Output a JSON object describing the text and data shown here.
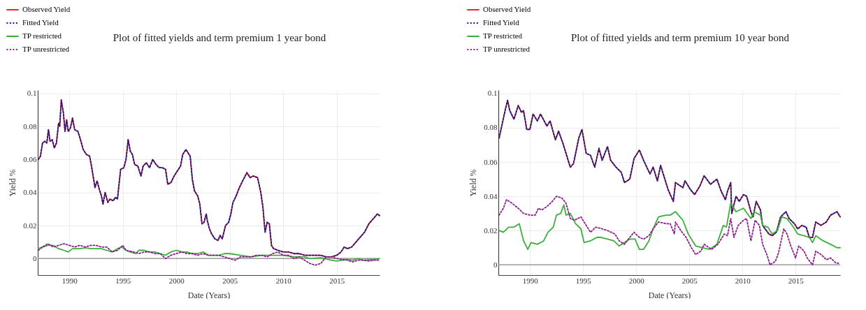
{
  "chart_data": [
    {
      "type": "line",
      "title": "Plot of fitted yields and term premium 1 year bond",
      "xlabel": "Date (Years)",
      "ylabel": "Yield %",
      "xlim": [
        1987.05,
        2019.0
      ],
      "ylim": [
        -0.01,
        0.102
      ],
      "xticks": [
        1990,
        1995,
        2000,
        2005,
        2010,
        2015
      ],
      "yticks": [
        0,
        0.02,
        0.04,
        0.06,
        0.08,
        0.1
      ],
      "grid": true,
      "legend": "top left",
      "ref_lines": [
        {
          "axis": "y",
          "value": 0,
          "color": "#999999"
        }
      ],
      "series": [
        {
          "name": "Observed Yield",
          "color": "#e8262d",
          "line_style": "solid",
          "x": [
            1987.1,
            1987.3,
            1987.5,
            1987.7,
            1987.9,
            1988.05,
            1988.2,
            1988.4,
            1988.6,
            1988.8,
            1989.0,
            1989.1,
            1989.25,
            1989.45,
            1989.6,
            1989.75,
            1989.9,
            1990.1,
            1990.3,
            1990.5,
            1990.8,
            1991.0,
            1991.3,
            1991.6,
            1991.9,
            1992.1,
            1992.4,
            1992.6,
            1992.8,
            1993.0,
            1993.15,
            1993.35,
            1993.6,
            1993.8,
            1994.1,
            1994.3,
            1994.5,
            1994.8,
            1995.1,
            1995.3,
            1995.5,
            1995.7,
            1995.9,
            1996.1,
            1996.4,
            1996.7,
            1996.9,
            1997.2,
            1997.5,
            1997.8,
            1998.1,
            1998.4,
            1998.7,
            1999.0,
            1999.2,
            1999.5,
            1999.8,
            2000.1,
            2000.4,
            2000.6,
            2000.9,
            2001.1,
            2001.3,
            2001.5,
            2001.7,
            2002.0,
            2002.2,
            2002.4,
            2002.6,
            2002.8,
            2002.9,
            2003.1,
            2003.3,
            2003.6,
            2003.9,
            2004.1,
            2004.3,
            2004.6,
            2004.9,
            2005.1,
            2005.3,
            2005.6,
            2005.9,
            2006.2,
            2006.6,
            2006.9,
            2007.2,
            2007.6,
            2007.9,
            2008.1,
            2008.3,
            2008.5,
            2008.7,
            2008.9,
            2009.1,
            2009.5,
            2010.0,
            2010.5,
            2011.0,
            2011.5,
            2012.0,
            2012.5,
            2013.0,
            2013.5,
            2014.0,
            2014.5,
            2015.0,
            2015.4,
            2015.7,
            2016.0,
            2016.4,
            2016.8,
            2017.2,
            2017.6,
            2018.0,
            2018.4,
            2018.8,
            2019.0
          ],
          "values": [
            0.06,
            0.062,
            0.07,
            0.071,
            0.07,
            0.078,
            0.071,
            0.072,
            0.067,
            0.07,
            0.082,
            0.08,
            0.096,
            0.088,
            0.077,
            0.084,
            0.077,
            0.079,
            0.085,
            0.078,
            0.077,
            0.073,
            0.066,
            0.063,
            0.062,
            0.055,
            0.043,
            0.047,
            0.042,
            0.038,
            0.033,
            0.04,
            0.034,
            0.036,
            0.035,
            0.037,
            0.036,
            0.054,
            0.055,
            0.06,
            0.072,
            0.065,
            0.063,
            0.057,
            0.056,
            0.05,
            0.056,
            0.058,
            0.055,
            0.06,
            0.057,
            0.055,
            0.055,
            0.054,
            0.045,
            0.046,
            0.05,
            0.053,
            0.056,
            0.063,
            0.066,
            0.064,
            0.062,
            0.048,
            0.041,
            0.038,
            0.033,
            0.021,
            0.022,
            0.027,
            0.023,
            0.018,
            0.015,
            0.012,
            0.011,
            0.014,
            0.012,
            0.02,
            0.022,
            0.027,
            0.034,
            0.038,
            0.043,
            0.047,
            0.052,
            0.049,
            0.05,
            0.049,
            0.04,
            0.031,
            0.016,
            0.022,
            0.021,
            0.008,
            0.006,
            0.005,
            0.004,
            0.004,
            0.003,
            0.003,
            0.002,
            0.002,
            0.002,
            0.002,
            0.001,
            0.001,
            0.002,
            0.004,
            0.007,
            0.006,
            0.007,
            0.01,
            0.013,
            0.016,
            0.021,
            0.024,
            0.027,
            0.026
          ]
        },
        {
          "name": "Fitted Yield",
          "color": "#1a1a80",
          "line_style": "dotted",
          "x": [
            1987.1,
            1987.3,
            1987.5,
            1987.7,
            1987.9,
            1988.05,
            1988.2,
            1988.4,
            1988.6,
            1988.8,
            1989.0,
            1989.1,
            1989.25,
            1989.45,
            1989.6,
            1989.75,
            1989.9,
            1990.1,
            1990.3,
            1990.5,
            1990.8,
            1991.0,
            1991.3,
            1991.6,
            1991.9,
            1992.1,
            1992.4,
            1992.6,
            1992.8,
            1993.0,
            1993.15,
            1993.35,
            1993.6,
            1993.8,
            1994.1,
            1994.3,
            1994.5,
            1994.8,
            1995.1,
            1995.3,
            1995.5,
            1995.7,
            1995.9,
            1996.1,
            1996.4,
            1996.7,
            1996.9,
            1997.2,
            1997.5,
            1997.8,
            1998.1,
            1998.4,
            1998.7,
            1999.0,
            1999.2,
            1999.5,
            1999.8,
            2000.1,
            2000.4,
            2000.6,
            2000.9,
            2001.1,
            2001.3,
            2001.5,
            2001.7,
            2002.0,
            2002.2,
            2002.4,
            2002.6,
            2002.8,
            2002.9,
            2003.1,
            2003.3,
            2003.6,
            2003.9,
            2004.1,
            2004.3,
            2004.6,
            2004.9,
            2005.1,
            2005.3,
            2005.6,
            2005.9,
            2006.2,
            2006.6,
            2006.9,
            2007.2,
            2007.6,
            2007.9,
            2008.1,
            2008.3,
            2008.5,
            2008.7,
            2008.9,
            2009.1,
            2009.5,
            2010.0,
            2010.5,
            2011.0,
            2011.5,
            2012.0,
            2012.5,
            2013.0,
            2013.5,
            2014.0,
            2014.5,
            2015.0,
            2015.4,
            2015.7,
            2016.0,
            2016.4,
            2016.8,
            2017.2,
            2017.6,
            2018.0,
            2018.4,
            2018.8,
            2019.0
          ],
          "values": [
            0.06,
            0.062,
            0.07,
            0.071,
            0.07,
            0.078,
            0.071,
            0.072,
            0.067,
            0.07,
            0.082,
            0.08,
            0.096,
            0.088,
            0.077,
            0.084,
            0.077,
            0.079,
            0.085,
            0.078,
            0.077,
            0.073,
            0.066,
            0.063,
            0.062,
            0.055,
            0.043,
            0.047,
            0.042,
            0.038,
            0.033,
            0.04,
            0.034,
            0.036,
            0.035,
            0.037,
            0.036,
            0.054,
            0.055,
            0.06,
            0.072,
            0.065,
            0.063,
            0.057,
            0.056,
            0.05,
            0.056,
            0.058,
            0.055,
            0.06,
            0.057,
            0.055,
            0.055,
            0.054,
            0.045,
            0.046,
            0.05,
            0.053,
            0.056,
            0.063,
            0.066,
            0.064,
            0.062,
            0.048,
            0.041,
            0.038,
            0.033,
            0.021,
            0.022,
            0.027,
            0.023,
            0.018,
            0.015,
            0.012,
            0.011,
            0.014,
            0.012,
            0.02,
            0.022,
            0.027,
            0.034,
            0.038,
            0.043,
            0.047,
            0.052,
            0.049,
            0.05,
            0.049,
            0.04,
            0.031,
            0.016,
            0.022,
            0.021,
            0.008,
            0.006,
            0.005,
            0.004,
            0.004,
            0.003,
            0.003,
            0.002,
            0.002,
            0.002,
            0.002,
            0.001,
            0.001,
            0.002,
            0.004,
            0.007,
            0.006,
            0.007,
            0.01,
            0.013,
            0.016,
            0.021,
            0.024,
            0.027,
            0.026
          ]
        },
        {
          "name": "TP restricted",
          "color": "#3cae3c",
          "line_style": "solid",
          "x": [
            1987.1,
            1987.5,
            1988.0,
            1988.5,
            1989.0,
            1989.5,
            1989.9,
            1990.3,
            1991.0,
            1991.5,
            1992.0,
            1992.5,
            1993.0,
            1993.5,
            1994.0,
            1994.5,
            1994.9,
            1995.3,
            1995.7,
            1996.2,
            1996.5,
            1997.0,
            1997.5,
            1998.0,
            1998.5,
            1999.0,
            1999.5,
            2000.0,
            2000.5,
            2001.0,
            2001.5,
            2002.0,
            2002.5,
            2003.0,
            2004.0,
            2004.5,
            2005.0,
            2006.0,
            2007.0,
            2008.0,
            2009.0,
            2010.0,
            2011.0,
            2012.0,
            2012.5,
            2013.5,
            2014.5,
            2015.0,
            2016.0,
            2016.5,
            2017.0,
            2017.5,
            2018.5,
            2019.0
          ],
          "values": [
            0.006,
            0.007,
            0.008,
            0.008,
            0.006,
            0.005,
            0.004,
            0.006,
            0.006,
            0.0065,
            0.006,
            0.006,
            0.006,
            0.005,
            0.004,
            0.006,
            0.007,
            0.005,
            0.004,
            0.003,
            0.005,
            0.005,
            0.004,
            0.004,
            0.003,
            0.002,
            0.004,
            0.005,
            0.004,
            0.004,
            0.003,
            0.003,
            0.004,
            0.002,
            0.002,
            0.003,
            0.003,
            0.002,
            0.001,
            0.002,
            0.002,
            0.002,
            0.001,
            0.001,
            0.0,
            0.0005,
            -0.001,
            -0.0015,
            -0.0005,
            -0.001,
            0.0,
            -0.001,
            -0.0005,
            0.0
          ]
        },
        {
          "name": "TP unrestricted",
          "color": "#8b1a8b",
          "line_style": "dotted",
          "x": [
            1987.1,
            1987.5,
            1988.0,
            1988.5,
            1989.0,
            1989.5,
            1990.0,
            1990.5,
            1991.0,
            1991.5,
            1992.0,
            1992.5,
            1993.0,
            1993.5,
            1994.0,
            1994.5,
            1995.0,
            1995.3,
            1996.0,
            1996.5,
            1997.0,
            1997.5,
            1998.0,
            1998.5,
            1999.0,
            1999.5,
            2000.0,
            2000.5,
            2001.0,
            2001.5,
            2002.0,
            2002.5,
            2003.0,
            2003.5,
            2004.0,
            2004.5,
            2005.0,
            2005.5,
            2006.0,
            2006.5,
            2007.0,
            2007.5,
            2008.0,
            2008.5,
            2009.0,
            2009.5,
            2010.0,
            2010.5,
            2011.0,
            2011.5,
            2012.0,
            2012.5,
            2013.0,
            2013.5,
            2014.0,
            2014.5,
            2015.0,
            2015.5,
            2016.0,
            2016.5,
            2017.0,
            2017.5,
            2018.0,
            2018.5,
            2019.0
          ],
          "values": [
            0.005,
            0.007,
            0.009,
            0.007,
            0.008,
            0.009,
            0.008,
            0.007,
            0.008,
            0.007,
            0.008,
            0.008,
            0.007,
            0.007,
            0.004,
            0.005,
            0.008,
            0.005,
            0.004,
            0.003,
            0.004,
            0.004,
            0.003,
            0.003,
            0.0,
            0.002,
            0.003,
            0.004,
            0.003,
            0.003,
            0.002,
            0.003,
            0.002,
            0.002,
            0.002,
            0.001,
            0.0,
            -0.001,
            0.001,
            0.001,
            0.001,
            0.002,
            0.002,
            0.001,
            0.003,
            0.004,
            0.002,
            0.002,
            0.0,
            0.001,
            -0.001,
            -0.003,
            -0.004,
            -0.003,
            0.001,
            0.001,
            0.0,
            -0.0005,
            -0.001,
            -0.002,
            -0.001,
            -0.001,
            -0.0015,
            -0.001,
            -0.001
          ]
        }
      ]
    },
    {
      "type": "line",
      "title": "Plot of fitted yields and term premium 10 year bond",
      "xlabel": "Date (Years)",
      "ylabel": "Yield %",
      "xlim": [
        1987.03,
        2019.2
      ],
      "ylim": [
        -0.006,
        0.102
      ],
      "xticks": [
        1990,
        1995,
        2000,
        2005,
        2010,
        2015
      ],
      "yticks": [
        0,
        0.02,
        0.04,
        0.06,
        0.08,
        0.1
      ],
      "grid": true,
      "legend": "top left",
      "ref_lines": [
        {
          "axis": "y",
          "value": 0,
          "color": "#999999"
        }
      ],
      "series": [
        {
          "name": "Observed Yield",
          "color": "#e8262d",
          "line_style": "solid",
          "x": [
            1987.1,
            1987.7,
            1987.9,
            1988.1,
            1988.5,
            1988.9,
            1989.2,
            1989.4,
            1989.7,
            1990.0,
            1990.3,
            1990.7,
            1991.0,
            1991.6,
            1991.9,
            1992.4,
            1992.7,
            1993.1,
            1993.4,
            1993.8,
            1994.1,
            1994.6,
            1994.9,
            1995.3,
            1995.7,
            1996.1,
            1996.5,
            1996.8,
            1997.3,
            1997.6,
            1998.1,
            1998.6,
            1998.9,
            1999.4,
            1999.8,
            2000.3,
            2000.7,
            2001.3,
            2001.6,
            2002.0,
            2002.3,
            2002.7,
            2003.0,
            2003.5,
            2003.7,
            2004.4,
            2004.6,
            2005.1,
            2005.5,
            2006.0,
            2006.4,
            2007.0,
            2007.6,
            2008.0,
            2008.4,
            2008.6,
            2008.9,
            2009.0,
            2009.4,
            2009.7,
            2010.1,
            2010.4,
            2010.8,
            2011.0,
            2011.3,
            2011.7,
            2011.9,
            2012.5,
            2012.8,
            2013.2,
            2013.6,
            2014.1,
            2014.4,
            2014.9,
            2015.2,
            2015.6,
            2016.0,
            2016.3,
            2016.6,
            2016.9,
            2017.4,
            2017.9,
            2018.3,
            2018.9,
            2019.2
          ],
          "values": [
            0.074,
            0.091,
            0.096,
            0.09,
            0.085,
            0.093,
            0.089,
            0.09,
            0.079,
            0.079,
            0.088,
            0.084,
            0.088,
            0.081,
            0.084,
            0.073,
            0.078,
            0.071,
            0.065,
            0.057,
            0.059,
            0.074,
            0.079,
            0.065,
            0.064,
            0.057,
            0.068,
            0.061,
            0.069,
            0.061,
            0.057,
            0.054,
            0.048,
            0.05,
            0.062,
            0.067,
            0.061,
            0.053,
            0.057,
            0.049,
            0.058,
            0.05,
            0.044,
            0.037,
            0.048,
            0.045,
            0.049,
            0.044,
            0.041,
            0.046,
            0.052,
            0.047,
            0.05,
            0.043,
            0.038,
            0.043,
            0.048,
            0.03,
            0.04,
            0.037,
            0.041,
            0.04,
            0.031,
            0.028,
            0.037,
            0.032,
            0.023,
            0.018,
            0.017,
            0.019,
            0.028,
            0.031,
            0.027,
            0.024,
            0.021,
            0.023,
            0.022,
            0.016,
            0.016,
            0.025,
            0.023,
            0.025,
            0.029,
            0.031,
            0.028
          ]
        },
        {
          "name": "Fitted Yield",
          "color": "#1a1a80",
          "line_style": "dotted",
          "x": [
            1987.1,
            1987.7,
            1987.9,
            1988.1,
            1988.5,
            1988.9,
            1989.2,
            1989.4,
            1989.7,
            1990.0,
            1990.3,
            1990.7,
            1991.0,
            1991.6,
            1991.9,
            1992.4,
            1992.7,
            1993.1,
            1993.4,
            1993.8,
            1994.1,
            1994.6,
            1994.9,
            1995.3,
            1995.7,
            1996.1,
            1996.5,
            1996.8,
            1997.3,
            1997.6,
            1998.1,
            1998.6,
            1998.9,
            1999.4,
            1999.8,
            2000.3,
            2000.7,
            2001.3,
            2001.6,
            2002.0,
            2002.3,
            2002.7,
            2003.0,
            2003.5,
            2003.7,
            2004.4,
            2004.6,
            2005.1,
            2005.5,
            2006.0,
            2006.4,
            2007.0,
            2007.6,
            2008.0,
            2008.4,
            2008.6,
            2008.9,
            2009.0,
            2009.4,
            2009.7,
            2010.1,
            2010.4,
            2010.8,
            2011.0,
            2011.3,
            2011.7,
            2011.9,
            2012.5,
            2012.8,
            2013.2,
            2013.6,
            2014.1,
            2014.4,
            2014.9,
            2015.2,
            2015.6,
            2016.0,
            2016.3,
            2016.6,
            2016.9,
            2017.4,
            2017.9,
            2018.3,
            2018.9,
            2019.2
          ],
          "values": [
            0.074,
            0.091,
            0.096,
            0.09,
            0.085,
            0.093,
            0.089,
            0.09,
            0.079,
            0.079,
            0.088,
            0.084,
            0.088,
            0.081,
            0.084,
            0.073,
            0.078,
            0.071,
            0.065,
            0.057,
            0.059,
            0.074,
            0.079,
            0.065,
            0.064,
            0.057,
            0.068,
            0.061,
            0.069,
            0.061,
            0.057,
            0.054,
            0.048,
            0.05,
            0.062,
            0.067,
            0.061,
            0.053,
            0.057,
            0.049,
            0.058,
            0.05,
            0.044,
            0.037,
            0.048,
            0.045,
            0.049,
            0.044,
            0.041,
            0.046,
            0.052,
            0.047,
            0.05,
            0.043,
            0.038,
            0.043,
            0.048,
            0.03,
            0.04,
            0.037,
            0.041,
            0.04,
            0.031,
            0.028,
            0.037,
            0.032,
            0.023,
            0.018,
            0.017,
            0.019,
            0.028,
            0.031,
            0.027,
            0.024,
            0.021,
            0.023,
            0.022,
            0.016,
            0.016,
            0.025,
            0.023,
            0.025,
            0.029,
            0.031,
            0.028
          ]
        },
        {
          "name": "TP restricted",
          "color": "#3cae3c",
          "line_style": "solid",
          "x": [
            1987.1,
            1987.5,
            1988.0,
            1988.5,
            1989.0,
            1989.4,
            1989.8,
            1990.1,
            1990.7,
            1991.3,
            1991.7,
            1992.2,
            1992.5,
            1992.9,
            1993.2,
            1993.4,
            1993.8,
            1994.3,
            1994.8,
            1995.1,
            1995.7,
            1996.3,
            1996.7,
            1997.3,
            1997.9,
            1998.4,
            1998.9,
            1999.4,
            1999.9,
            2000.3,
            2000.7,
            2001.2,
            2001.6,
            2002.1,
            2002.8,
            2003.2,
            2003.7,
            2004.4,
            2004.9,
            2005.6,
            2006.2,
            2006.9,
            2007.6,
            2008.2,
            2008.5,
            2008.9,
            2009.4,
            2010.1,
            2010.8,
            2011.1,
            2011.7,
            2011.9,
            2012.4,
            2012.8,
            2013.3,
            2013.7,
            2014.2,
            2014.8,
            2015.2,
            2015.8,
            2016.3,
            2016.6,
            2016.9,
            2017.6,
            2018.3,
            2018.9,
            2019.2
          ],
          "values": [
            0.02,
            0.019,
            0.022,
            0.022,
            0.024,
            0.014,
            0.009,
            0.013,
            0.012,
            0.014,
            0.019,
            0.022,
            0.029,
            0.03,
            0.035,
            0.029,
            0.03,
            0.024,
            0.021,
            0.013,
            0.014,
            0.016,
            0.016,
            0.015,
            0.014,
            0.011,
            0.013,
            0.015,
            0.015,
            0.009,
            0.009,
            0.014,
            0.021,
            0.028,
            0.029,
            0.029,
            0.031,
            0.026,
            0.018,
            0.011,
            0.01,
            0.009,
            0.012,
            0.023,
            0.022,
            0.036,
            0.031,
            0.033,
            0.027,
            0.031,
            0.029,
            0.023,
            0.022,
            0.018,
            0.02,
            0.028,
            0.027,
            0.022,
            0.018,
            0.017,
            0.016,
            0.013,
            0.017,
            0.014,
            0.012,
            0.01,
            0.01
          ]
        },
        {
          "name": "TP unrestricted",
          "color": "#8b1a8b",
          "line_style": "dotted",
          "x": [
            1987.1,
            1987.5,
            1987.8,
            1988.3,
            1988.9,
            1989.4,
            1990.0,
            1990.5,
            1990.8,
            1991.1,
            1991.6,
            1992.1,
            1992.5,
            1993.0,
            1993.4,
            1993.8,
            1994.2,
            1994.8,
            1995.3,
            1995.7,
            1996.2,
            1996.8,
            1997.3,
            1998.0,
            1998.4,
            1998.9,
            1999.4,
            1999.8,
            2000.3,
            2000.7,
            2001.2,
            2001.6,
            2002.1,
            2002.8,
            2003.2,
            2003.6,
            2003.7,
            2004.2,
            2004.7,
            2005.2,
            2005.6,
            2006.1,
            2006.4,
            2007.1,
            2007.7,
            2008.3,
            2008.6,
            2008.9,
            2009.2,
            2009.6,
            2010.1,
            2010.4,
            2010.8,
            2011.2,
            2011.6,
            2011.9,
            2012.3,
            2012.6,
            2013.1,
            2013.4,
            2013.9,
            2014.2,
            2014.5,
            2015.0,
            2015.3,
            2015.8,
            2016.1,
            2016.6,
            2016.9,
            2017.4,
            2017.9,
            2018.3,
            2018.8,
            2019.2
          ],
          "values": [
            0.029,
            0.033,
            0.038,
            0.036,
            0.033,
            0.03,
            0.029,
            0.029,
            0.033,
            0.032,
            0.034,
            0.037,
            0.04,
            0.039,
            0.036,
            0.027,
            0.026,
            0.028,
            0.023,
            0.019,
            0.022,
            0.021,
            0.02,
            0.018,
            0.014,
            0.012,
            0.016,
            0.019,
            0.016,
            0.015,
            0.017,
            0.021,
            0.025,
            0.024,
            0.024,
            0.018,
            0.025,
            0.02,
            0.016,
            0.01,
            0.006,
            0.008,
            0.012,
            0.009,
            0.012,
            0.018,
            0.017,
            0.027,
            0.016,
            0.023,
            0.026,
            0.027,
            0.014,
            0.026,
            0.023,
            0.012,
            0.006,
            0.0,
            0.002,
            0.007,
            0.021,
            0.018,
            0.012,
            0.004,
            0.011,
            0.008,
            0.004,
            0.0,
            0.008,
            0.006,
            0.003,
            0.004,
            0.001,
            0.001
          ]
        }
      ]
    }
  ]
}
